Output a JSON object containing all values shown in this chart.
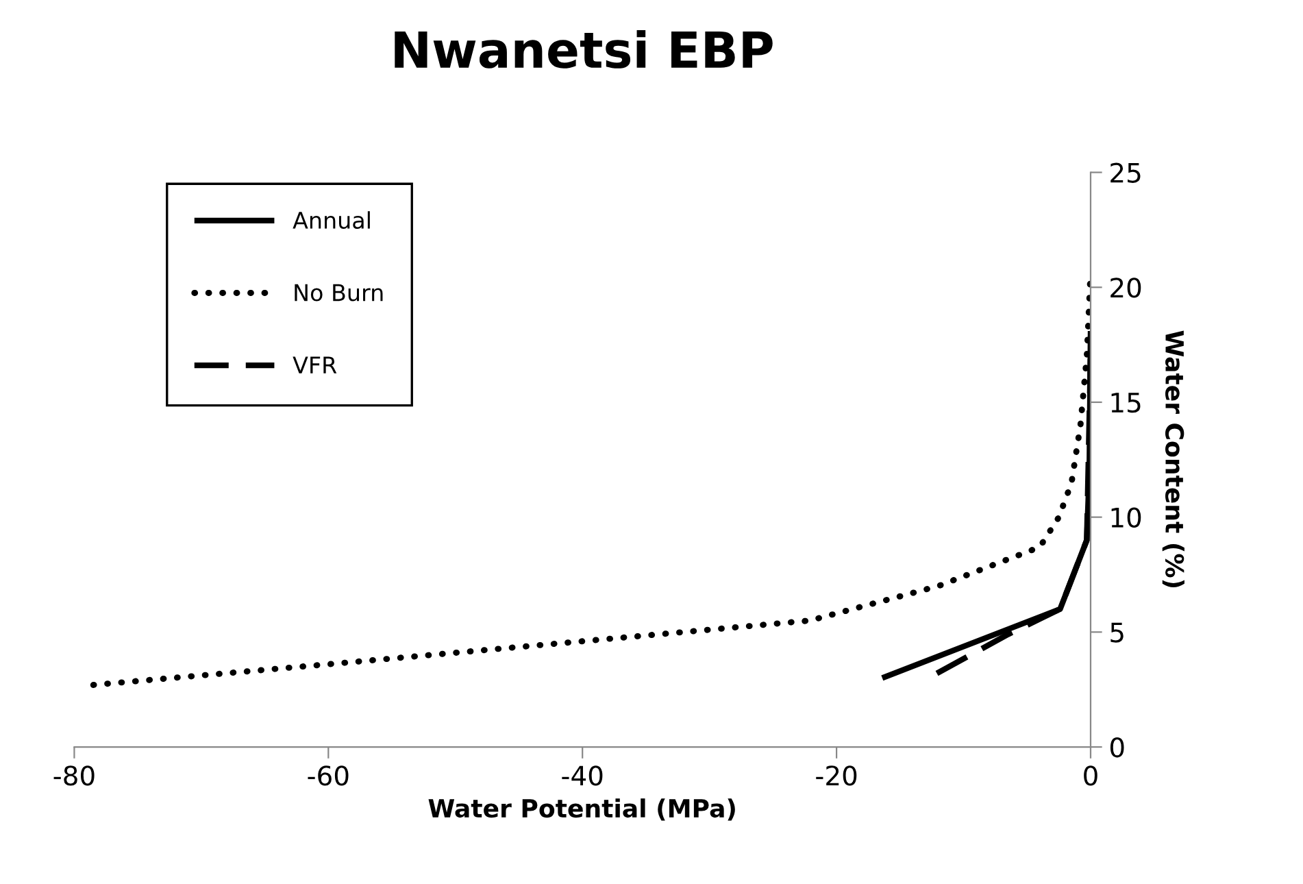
{
  "chart_data": {
    "type": "line",
    "title": "Nwanetsi EBP",
    "xlabel": "Water Potential (MPa)",
    "ylabel": "Water Content (%)",
    "xlim": [
      -80,
      0
    ],
    "xticks": [
      -80,
      -60,
      -40,
      -20,
      0
    ],
    "ylim": [
      0,
      25
    ],
    "yticks": [
      0,
      5,
      10,
      15,
      20,
      25
    ],
    "grid": false,
    "legend": "top left",
    "marker": "none",
    "series": [
      {
        "name": "Annual",
        "color": "#000000",
        "line_style": "solid",
        "x": [
          -16.4,
          -2.4,
          -0.3,
          -0.1,
          0
        ],
        "values": [
          3.0,
          6.0,
          9.0,
          12.0,
          18.1
        ]
      },
      {
        "name": "No Burn",
        "color": "#000000",
        "line_style": "dotted",
        "x": [
          -78.5,
          -60,
          -40,
          -22.1,
          -12,
          -4,
          -2.5,
          -1.5,
          -0.8,
          -0.3,
          0
        ],
        "values": [
          2.7,
          3.6,
          4.6,
          5.5,
          7.0,
          8.7,
          10.0,
          11.5,
          14.0,
          17.0,
          20.7
        ]
      },
      {
        "name": "VFR",
        "color": "#000000",
        "line_style": "dashed",
        "x": [
          -12.1,
          -6.5,
          -2.4,
          -0.3,
          0
        ],
        "values": [
          3.2,
          4.9,
          6.0,
          9.0,
          17.0
        ]
      }
    ]
  }
}
